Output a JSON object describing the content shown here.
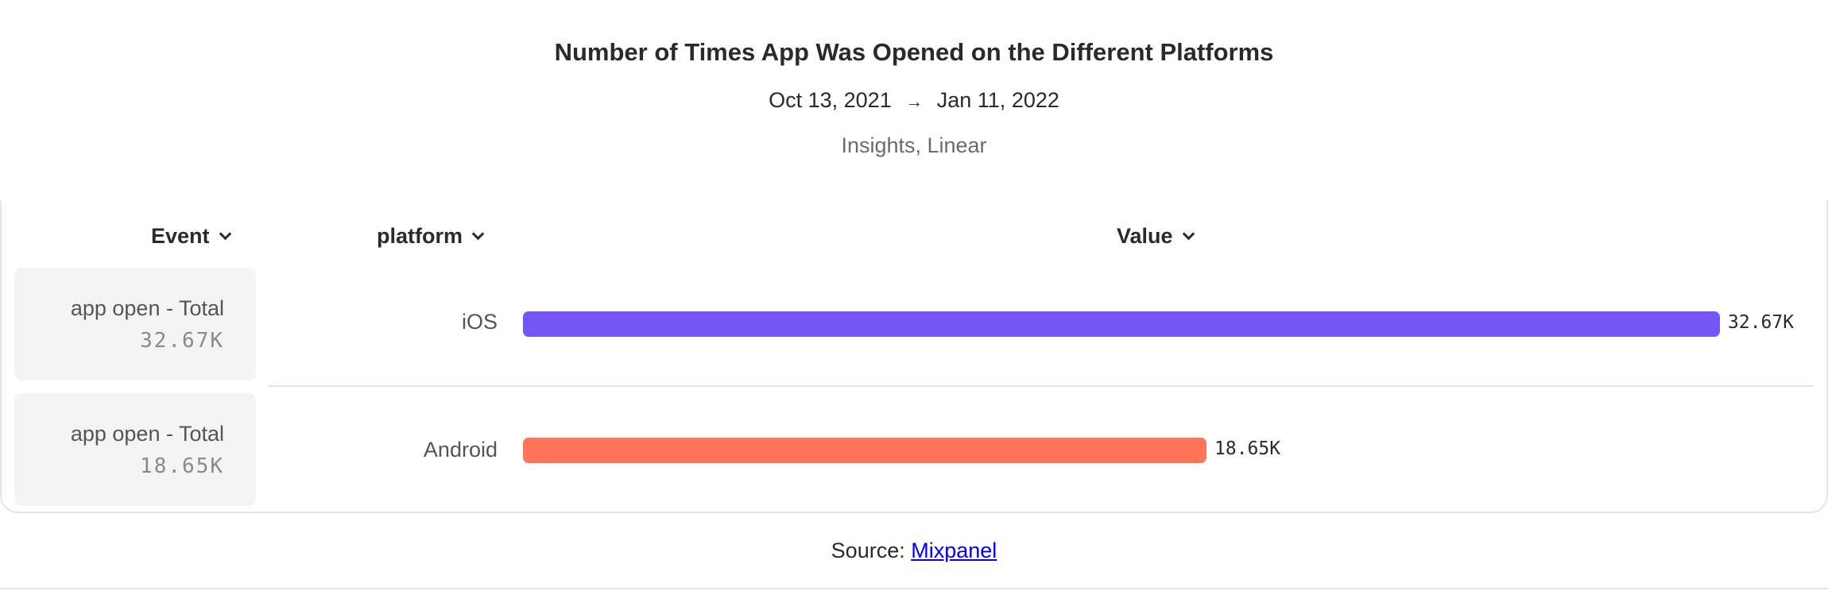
{
  "header": {
    "title": "Number of Times App Was Opened on the Different Platforms",
    "date_start": "Oct 13, 2021",
    "date_arrow": "→",
    "date_end": "Jan 11, 2022",
    "meta": "Insights, Linear"
  },
  "table": {
    "columns": {
      "event": "Event",
      "platform": "platform",
      "value": "Value"
    }
  },
  "colors": {
    "ios": "#7356f5",
    "android": "#ff7557"
  },
  "chart_data": {
    "type": "bar",
    "title": "Number of Times App Was Opened on the Different Platforms",
    "orientation": "horizontal",
    "categories": [
      "iOS",
      "Android"
    ],
    "values": [
      32670,
      18650
    ],
    "value_labels": [
      "32.67K",
      "18.65K"
    ],
    "events": [
      {
        "name": "app open - Total",
        "value": "32.67K"
      },
      {
        "name": "app open - Total",
        "value": "18.65K"
      }
    ],
    "xlim": [
      0,
      32670
    ],
    "grid": false
  },
  "footer": {
    "source_label": "Source:",
    "source_link": "Mixpanel"
  }
}
